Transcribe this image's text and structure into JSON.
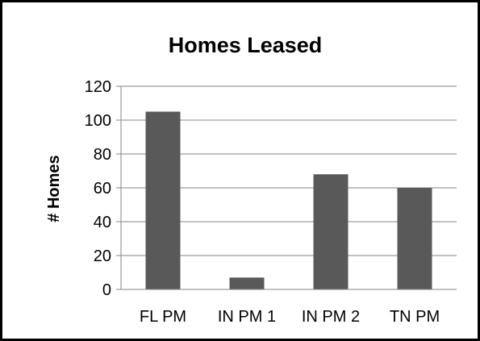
{
  "chart_data": {
    "type": "bar",
    "title": "Homes Leased",
    "xlabel": "",
    "ylabel": "# Homes",
    "categories": [
      "FL PM",
      "IN PM 1",
      "IN PM 2",
      "TN PM"
    ],
    "values": [
      105,
      7,
      68,
      60
    ],
    "ylim": [
      0,
      120
    ],
    "yticks": [
      0,
      20,
      40,
      60,
      80,
      100,
      120
    ],
    "grid": true,
    "legend": "none",
    "bar_color": "#595959",
    "grid_color": "#868686"
  }
}
